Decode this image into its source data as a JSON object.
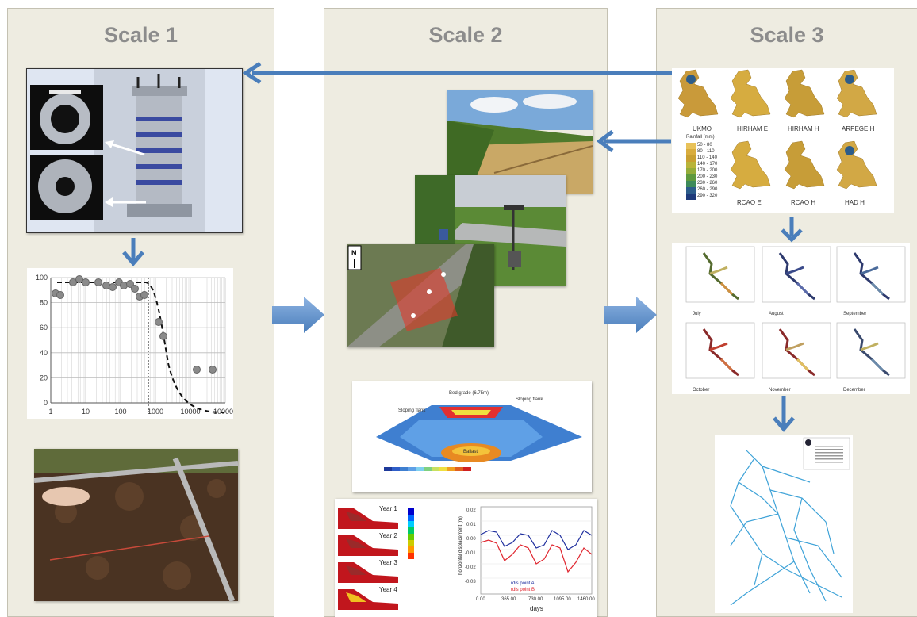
{
  "panels": [
    {
      "title": "Scale 1"
    },
    {
      "title": "Scale 2"
    },
    {
      "title": "Scale 3"
    }
  ],
  "scale1_chart": {
    "y_ticks": [
      "100",
      "80",
      "60",
      "40",
      "20",
      "0"
    ],
    "x_ticks": [
      "1",
      "10",
      "100",
      "1000",
      "10000",
      "100000"
    ]
  },
  "scale3_maps": {
    "labels_top": [
      "UKMO",
      "HIRHAM E",
      "HIRHAM H",
      "ARPEGE H"
    ],
    "labels_bottom": [
      "RCAO E",
      "RCAO H",
      "HAD H"
    ],
    "legend_title": "Rainfall (mm)",
    "legend_items": [
      "50 - 80",
      "80 - 110",
      "110 - 140",
      "140 - 170",
      "170 - 200",
      "200 - 230",
      "230 - 260",
      "260 - 290",
      "290 - 320"
    ],
    "legend_colors": [
      "#e8c25a",
      "#d9ad3e",
      "#c9a032",
      "#b9b43a",
      "#95ad3a",
      "#5f9a3e",
      "#3d8a5a",
      "#2c5c8a",
      "#1e3a7a"
    ]
  },
  "scale3_lines": {
    "months": [
      "July",
      "August",
      "September",
      "October",
      "November",
      "December"
    ]
  },
  "scale2_transect": {
    "labels": [
      "Bed grade (6.75m)",
      "Sloping flank",
      "Sloping flank",
      "Ballast"
    ]
  },
  "scale2_fe": {
    "years": [
      "Year 1",
      "Year 2",
      "Year 3",
      "Year 4"
    ],
    "y_axis_label": "horizontal displacement (m)",
    "x_axis_label": "days",
    "x_ticks": [
      "0.00",
      "365.00",
      "730.00",
      "1095.00",
      "1460.00"
    ],
    "y_ticks": [
      "0.02",
      "0.01",
      "0.00",
      "-0.01",
      "-0.02",
      "-0.03"
    ],
    "legend": [
      "rdis point A",
      "rdis point B"
    ],
    "colors": {
      "a": "#1f2f9e",
      "b": "#e0262f"
    }
  },
  "colors": {
    "arrow": "#4a7ebb",
    "panel": "#eeece1"
  }
}
